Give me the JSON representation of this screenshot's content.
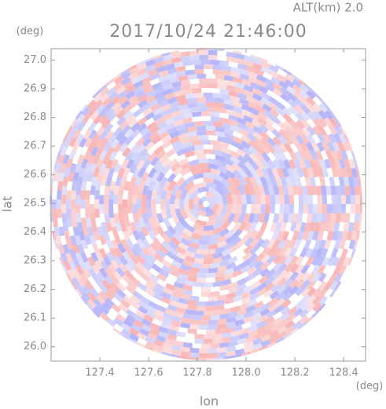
{
  "chart_data": {
    "type": "map",
    "title": "2017/10/24 21:46:00",
    "subtitle": "ALT(km) 2.0",
    "x_label": "lon",
    "y_label": "lat",
    "x_unit": "(deg)",
    "y_unit": "(deg)",
    "xlim": [
      127.2,
      128.49
    ],
    "ylim": [
      25.95,
      27.04
    ],
    "xticks": [
      127.4,
      127.6,
      127.8,
      {
        "value": 128,
        "label": "128.0"
      },
      128.2,
      128.4
    ],
    "yticks": [
      {
        "value": 26,
        "label": "26.0"
      },
      26.1,
      26.2,
      26.3,
      26.4,
      26.5,
      26.6,
      26.7,
      26.8,
      26.9,
      {
        "value": 27,
        "label": "27.0"
      }
    ]
  }
}
